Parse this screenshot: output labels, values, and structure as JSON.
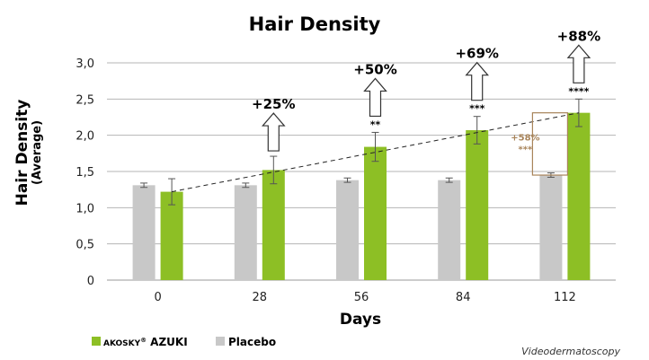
{
  "chart_data": {
    "type": "bar",
    "title": "Hair Density",
    "ylabel": "Hair Density",
    "ylabel_sub": "(Average)",
    "xlabel": "Days",
    "categories": [
      "0",
      "28",
      "56",
      "84",
      "112"
    ],
    "ylim": [
      0,
      3.0
    ],
    "yticks": [
      "0",
      "0,5",
      "1,0",
      "1,5",
      "2,0",
      "2,5",
      "3,0"
    ],
    "grid": true,
    "series": [
      {
        "name": "Placebo",
        "color": "#c8c8c8",
        "values": [
          1.31,
          1.31,
          1.38,
          1.38,
          1.45
        ],
        "errors": [
          0.03,
          0.03,
          0.03,
          0.03,
          0.03
        ]
      },
      {
        "name": "AKOSKY® AZUKI",
        "color": "#8dbf25",
        "values": [
          1.22,
          1.52,
          1.84,
          2.07,
          2.31
        ],
        "errors": [
          0.18,
          0.19,
          0.2,
          0.19,
          0.19
        ]
      }
    ],
    "trend_line": {
      "series": "AKOSKY® AZUKI",
      "style": "dashed"
    },
    "annotations": [
      {
        "category": "28",
        "label": "+25%",
        "stars": ""
      },
      {
        "category": "56",
        "label": "+50%",
        "stars": "**"
      },
      {
        "category": "84",
        "label": "+69%",
        "stars": "***"
      },
      {
        "category": "112",
        "label": "+88%",
        "stars": "****"
      }
    ],
    "comparison": {
      "category": "112",
      "label": "+58%",
      "stars": "***",
      "color": "#a8845a"
    },
    "legend": {
      "position": "bottom-left",
      "items": [
        {
          "prefix": "AKOSKY",
          "registered": "®",
          "main": "AZUKI",
          "color": "#8dbf25"
        },
        {
          "prefix": "",
          "registered": "",
          "main": "Placebo",
          "color": "#c8c8c8"
        }
      ]
    },
    "source_note": "Videodermatoscopy"
  }
}
